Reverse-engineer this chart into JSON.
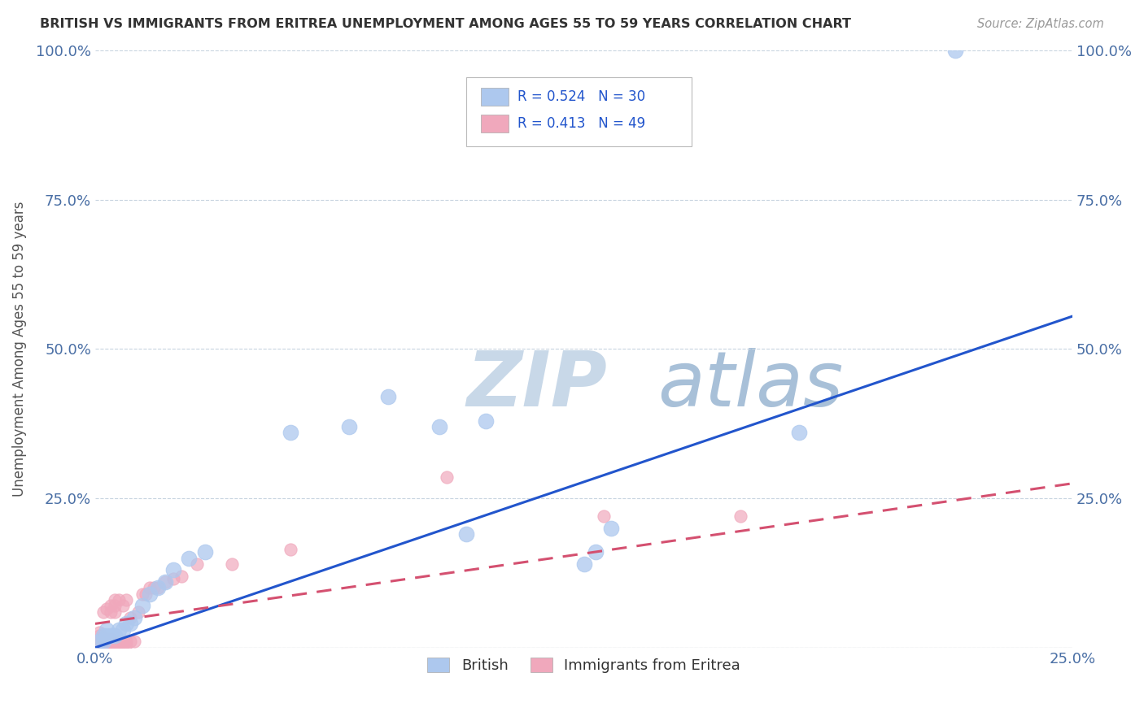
{
  "title": "BRITISH VS IMMIGRANTS FROM ERITREA UNEMPLOYMENT AMONG AGES 55 TO 59 YEARS CORRELATION CHART",
  "source": "Source: ZipAtlas.com",
  "ylabel": "Unemployment Among Ages 55 to 59 years",
  "xlim": [
    0.0,
    0.25
  ],
  "ylim": [
    0.0,
    1.0
  ],
  "xtick_positions": [
    0.0,
    0.05,
    0.1,
    0.15,
    0.2,
    0.25
  ],
  "xtick_labels": [
    "0.0%",
    "",
    "",
    "",
    "",
    "25.0%"
  ],
  "ytick_positions": [
    0.0,
    0.25,
    0.5,
    0.75,
    1.0
  ],
  "ytick_labels": [
    "",
    "25.0%",
    "50.0%",
    "75.0%",
    "100.0%"
  ],
  "british_color": "#adc8ee",
  "eritrea_color": "#f0a8bc",
  "british_line_color": "#2255cc",
  "eritrea_line_color": "#d45070",
  "watermark_zip_color": "#c8d8e8",
  "watermark_atlas_color": "#a8c0d8",
  "legend_R_british": "0.524",
  "legend_N_british": "30",
  "legend_R_eritrea": "0.413",
  "legend_N_eritrea": "49",
  "legend_text_color": "#2255cc",
  "background_color": "#ffffff",
  "grid_color": "#c8d4e0",
  "title_color": "#333333",
  "source_color": "#999999",
  "ylabel_color": "#555555",
  "tick_color": "#4a6fa5",
  "british_line_x": [
    0.0,
    0.25
  ],
  "british_line_y": [
    0.0,
    0.555
  ],
  "eritrea_line_x": [
    0.0,
    0.25
  ],
  "eritrea_line_y": [
    0.04,
    0.275
  ],
  "british_scatter_x": [
    0.001,
    0.002,
    0.002,
    0.003,
    0.003,
    0.004,
    0.005,
    0.006,
    0.007,
    0.008,
    0.009,
    0.01,
    0.012,
    0.014,
    0.016,
    0.018,
    0.02,
    0.024,
    0.028,
    0.05,
    0.065,
    0.075,
    0.088,
    0.1,
    0.128,
    0.132,
    0.18,
    0.22,
    0.125,
    0.095
  ],
  "british_scatter_y": [
    0.01,
    0.01,
    0.02,
    0.02,
    0.03,
    0.02,
    0.02,
    0.03,
    0.03,
    0.04,
    0.04,
    0.05,
    0.07,
    0.09,
    0.1,
    0.11,
    0.13,
    0.15,
    0.16,
    0.36,
    0.37,
    0.42,
    0.37,
    0.38,
    0.16,
    0.2,
    0.36,
    1.0,
    0.14,
    0.19
  ],
  "eritrea_scatter_x": [
    0.001,
    0.001,
    0.001,
    0.001,
    0.001,
    0.002,
    0.002,
    0.002,
    0.002,
    0.003,
    0.003,
    0.003,
    0.003,
    0.004,
    0.004,
    0.004,
    0.004,
    0.004,
    0.005,
    0.005,
    0.005,
    0.005,
    0.005,
    0.006,
    0.006,
    0.006,
    0.007,
    0.007,
    0.008,
    0.008,
    0.008,
    0.009,
    0.009,
    0.01,
    0.011,
    0.012,
    0.013,
    0.014,
    0.015,
    0.016,
    0.018,
    0.02,
    0.022,
    0.026,
    0.035,
    0.05,
    0.09,
    0.13,
    0.165
  ],
  "eritrea_scatter_y": [
    0.005,
    0.01,
    0.015,
    0.02,
    0.025,
    0.005,
    0.01,
    0.015,
    0.06,
    0.005,
    0.01,
    0.015,
    0.065,
    0.005,
    0.01,
    0.015,
    0.06,
    0.07,
    0.005,
    0.01,
    0.06,
    0.07,
    0.08,
    0.005,
    0.01,
    0.08,
    0.005,
    0.07,
    0.005,
    0.01,
    0.08,
    0.01,
    0.05,
    0.01,
    0.06,
    0.09,
    0.09,
    0.1,
    0.1,
    0.1,
    0.11,
    0.115,
    0.12,
    0.14,
    0.14,
    0.165,
    0.285,
    0.22,
    0.22
  ]
}
